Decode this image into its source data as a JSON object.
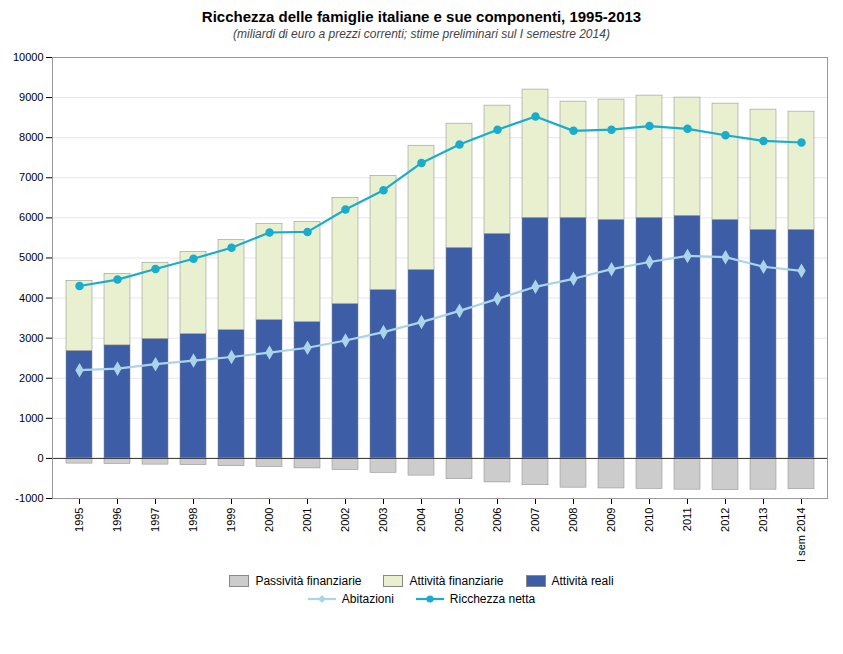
{
  "chart_data": {
    "type": "bar",
    "title": "Ricchezza delle famiglie italiane e sue componenti, 1995-2013",
    "subtitle": "(miliardi di euro a prezzi correnti; stime preliminari sul I semestre 2014)",
    "categories": [
      "1995",
      "1996",
      "1997",
      "1998",
      "1999",
      "2000",
      "2001",
      "2002",
      "2003",
      "2004",
      "2005",
      "2006",
      "2007",
      "2008",
      "2009",
      "2010",
      "2011",
      "2012",
      "2013",
      "I sem 2014"
    ],
    "stacked": true,
    "series": [
      {
        "name": "Passività finanziarie",
        "type": "bar",
        "color": "#cccccc",
        "values": [
          -130,
          -140,
          -155,
          -170,
          -195,
          -215,
          -250,
          -290,
          -360,
          -430,
          -520,
          -600,
          -670,
          -730,
          -750,
          -760,
          -780,
          -790,
          -780,
          -770
        ]
      },
      {
        "name": "Attività finanziarie",
        "type": "bar",
        "color": "#e8f0d0",
        "values": [
          1750,
          1780,
          1900,
          2050,
          2250,
          2400,
          2500,
          2650,
          2850,
          3100,
          3100,
          3200,
          3200,
          2900,
          3000,
          3050,
          2950,
          2900,
          3000,
          2950
        ]
      },
      {
        "name": "Attività reali",
        "type": "bar",
        "color": "#3d5ea6",
        "values": [
          2680,
          2820,
          2980,
          3100,
          3200,
          3450,
          3400,
          3850,
          4200,
          4700,
          5250,
          5600,
          6000,
          6000,
          5950,
          6000,
          6050,
          5950,
          5700,
          5700
        ]
      },
      {
        "name": "Abitazioni",
        "type": "line",
        "color": "#aad4ea",
        "marker": "diamond",
        "values": [
          2200,
          2240,
          2350,
          2440,
          2530,
          2640,
          2760,
          2940,
          3150,
          3400,
          3680,
          3980,
          4280,
          4480,
          4720,
          4900,
          5050,
          5020,
          4780,
          4680
        ]
      },
      {
        "name": "Ricchezza netta",
        "type": "line",
        "color": "#1aaccc",
        "marker": "circle",
        "values": [
          4300,
          4460,
          4725,
          4980,
          5255,
          5635,
          5650,
          6210,
          6690,
          7370,
          7830,
          8200,
          8530,
          8170,
          8200,
          8290,
          8220,
          8060,
          7920,
          7880
        ]
      }
    ],
    "ylim": [
      -1000,
      10000
    ],
    "yticks": [
      -1000,
      0,
      1000,
      2000,
      3000,
      4000,
      5000,
      6000,
      7000,
      8000,
      9000,
      10000
    ],
    "grid": true
  }
}
